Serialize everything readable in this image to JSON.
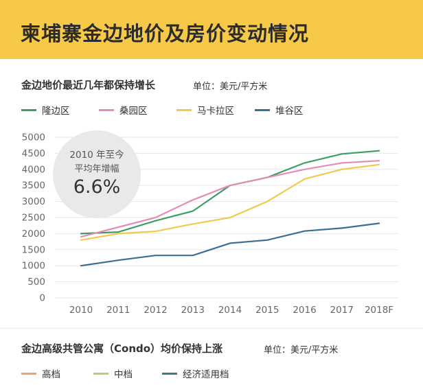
{
  "header": {
    "title": "柬埔寨金边地价及房价变动情况"
  },
  "section1": {
    "title": "金边地价最近几年都保持增长",
    "unit": "单位：美元/平方米",
    "legend": [
      {
        "label": "隆边区",
        "color": "#3b9e62"
      },
      {
        "label": "桑园区",
        "color": "#e48cb8"
      },
      {
        "label": "马卡拉区",
        "color": "#f0c94e"
      },
      {
        "label": "堆谷区",
        "color": "#3b6e8f"
      }
    ],
    "callout": {
      "line1": "2010 年至今",
      "line2": "平均年增幅",
      "value": "6.6%"
    }
  },
  "section2": {
    "title": "金边高级共管公寓（Condo）均价保持上涨",
    "unit": "单位：美元/平方米",
    "legend": [
      {
        "label": "高档",
        "color": "#f0a06a"
      },
      {
        "label": "中档",
        "color": "#b6d07a"
      },
      {
        "label": "经济适用档",
        "color": "#3d7a8c"
      }
    ]
  },
  "chart_data": {
    "type": "line",
    "title": "金边地价最近几年都保持增长",
    "categories": [
      "2010",
      "2011",
      "2012",
      "2013",
      "2014",
      "2015",
      "2016",
      "2017",
      "2018F"
    ],
    "ylim": [
      0,
      5000
    ],
    "yticks": [
      "0",
      "500",
      "1000",
      "1500",
      "2000",
      "2500",
      "3000",
      "3500",
      "4000",
      "4500",
      "5000"
    ],
    "grid": true,
    "legend_position": "top",
    "series": [
      {
        "name": "隆边区",
        "color": "#3b9e62",
        "values": [
          2000,
          2050,
          2400,
          2700,
          3500,
          3750,
          4200,
          4480,
          4580
        ]
      },
      {
        "name": "桑园区",
        "color": "#e48cb8",
        "values": [
          1900,
          2200,
          2500,
          3050,
          3500,
          3750,
          4000,
          4200,
          4270
        ]
      },
      {
        "name": "马卡拉区",
        "color": "#f0c94e",
        "values": [
          1800,
          2000,
          2070,
          2300,
          2500,
          3000,
          3700,
          4000,
          4150
        ]
      },
      {
        "name": "堆谷区",
        "color": "#3b6e8f",
        "values": [
          1000,
          1170,
          1320,
          1320,
          1700,
          1800,
          2080,
          2170,
          2320
        ]
      }
    ]
  }
}
